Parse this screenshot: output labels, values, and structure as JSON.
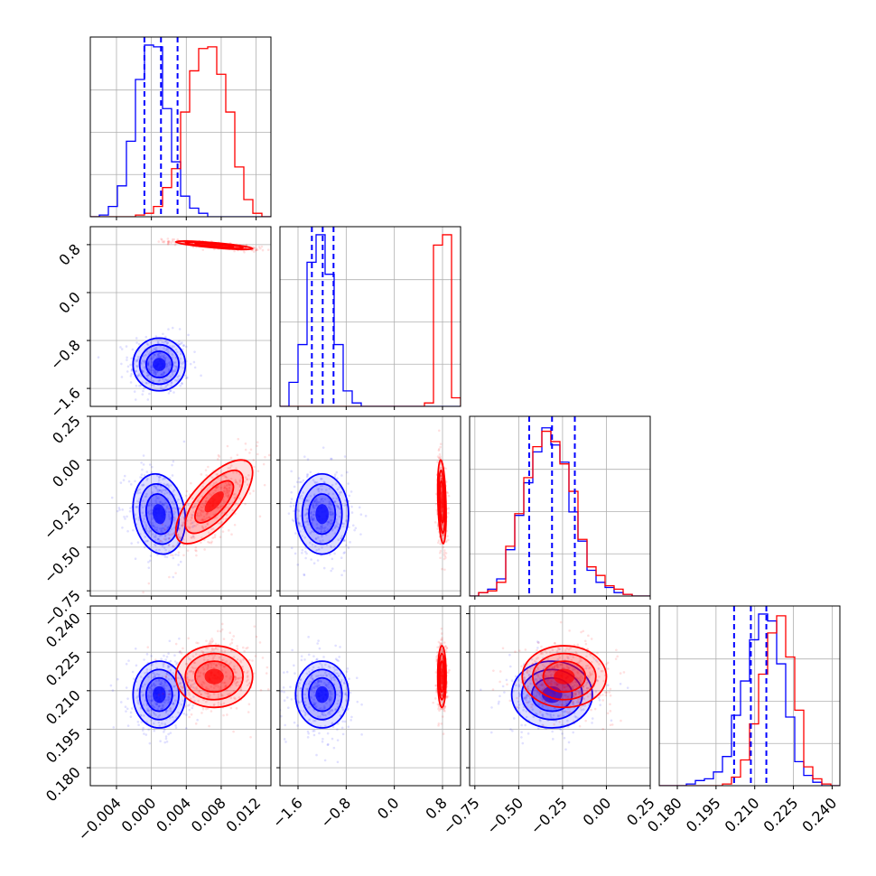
{
  "chart_data": {
    "type": "corner",
    "title": "",
    "parameters": [
      {
        "range": [
          -0.007,
          0.0137
        ],
        "ticks": [
          -0.004,
          0.0,
          0.004,
          0.008,
          0.012
        ],
        "tick_labels": [
          "−0.004",
          "0.000",
          "0.004",
          "0.008",
          "0.012"
        ]
      },
      {
        "range": [
          -1.9,
          1.1
        ],
        "ticks": [
          -1.6,
          -0.8,
          0.0,
          0.8
        ],
        "tick_labels": [
          "−1.6",
          "−0.8",
          "0.0",
          "0.8"
        ]
      },
      {
        "range": [
          -0.78,
          0.25
        ],
        "ticks": [
          -0.75,
          -0.5,
          -0.25,
          0.0,
          0.25
        ],
        "tick_labels": [
          "−0.75",
          "−0.50",
          "−0.25",
          "0.00",
          "0.25"
        ]
      },
      {
        "range": [
          0.173,
          0.243
        ],
        "ticks": [
          0.18,
          0.195,
          0.21,
          0.225,
          0.24
        ],
        "tick_labels": [
          "0.180",
          "0.195",
          "0.210",
          "0.225",
          "0.240"
        ]
      }
    ],
    "series": [
      {
        "color": "#0000ff",
        "mean": [
          0.0009,
          -1.2,
          -0.31,
          0.2085
        ],
        "std": [
          0.0015,
          0.22,
          0.115,
          0.0065
        ],
        "corr": {
          "0-2": -0.15
        },
        "quantiles": [
          [
            -0.0008,
            0.0011,
            0.003
          ],
          [
            -1.37,
            -1.19,
            -1.01
          ],
          [
            -0.44,
            -0.31,
            -0.18
          ],
          [
            0.202,
            0.2085,
            0.2145
          ]
        ],
        "hist": [
          [
            0.0,
            0.01,
            0.06,
            0.18,
            0.44,
            0.8,
            1.0,
            0.99,
            0.63,
            0.32,
            0.12,
            0.05,
            0.02,
            0.0,
            0.0,
            0.0,
            0.0,
            0.0,
            0.0,
            0.0
          ],
          [
            0.0,
            0.14,
            0.36,
            0.84,
            1.0,
            0.77,
            0.36,
            0.09,
            0.02,
            0.0,
            0.0,
            0.0,
            0.0,
            0.0,
            0.0,
            0.0,
            0.0,
            0.0,
            0.0,
            0.0
          ],
          [
            0.0,
            0.02,
            0.04,
            0.1,
            0.27,
            0.47,
            0.66,
            0.84,
            0.98,
            0.88,
            0.78,
            0.49,
            0.32,
            0.15,
            0.08,
            0.05,
            0.02,
            0.01,
            0.0,
            0.0
          ],
          [
            0.0,
            0.0,
            0.0,
            0.01,
            0.03,
            0.04,
            0.08,
            0.17,
            0.41,
            0.61,
            0.85,
            1.0,
            0.96,
            0.71,
            0.4,
            0.14,
            0.06,
            0.02,
            0.0,
            0.0
          ]
        ]
      },
      {
        "color": "#ff0000",
        "mean": [
          0.0072,
          0.79,
          -0.24,
          0.2155
        ],
        "std": [
          0.0022,
          0.035,
          0.12,
          0.006
        ],
        "corr": {
          "0-1": -0.8,
          "0-2": 0.7,
          "1-2": -0.3
        },
        "hist": [
          [
            0.0,
            0.0,
            0.0,
            0.0,
            0.0,
            0.01,
            0.02,
            0.06,
            0.17,
            0.28,
            0.61,
            0.85,
            0.98,
            0.99,
            0.83,
            0.61,
            0.29,
            0.1,
            0.02,
            0.0
          ],
          [
            0.0,
            0.0,
            0.0,
            0.0,
            0.0,
            0.0,
            0.0,
            0.0,
            0.0,
            0.0,
            0.0,
            0.0,
            0.0,
            0.0,
            0.0,
            0.0,
            0.02,
            0.94,
            1.0,
            0.05
          ],
          [
            0.0,
            0.02,
            0.03,
            0.08,
            0.29,
            0.48,
            0.69,
            0.87,
            0.96,
            0.9,
            0.77,
            0.61,
            0.33,
            0.17,
            0.12,
            0.06,
            0.04,
            0.01,
            0.0,
            0.0
          ],
          [
            0.0,
            0.0,
            0.0,
            0.0,
            0.0,
            0.0,
            0.0,
            0.01,
            0.05,
            0.15,
            0.36,
            0.65,
            0.89,
            0.99,
            0.75,
            0.44,
            0.11,
            0.04,
            0.01,
            0.0
          ]
        ]
      }
    ],
    "grid": true,
    "legend": "none"
  }
}
